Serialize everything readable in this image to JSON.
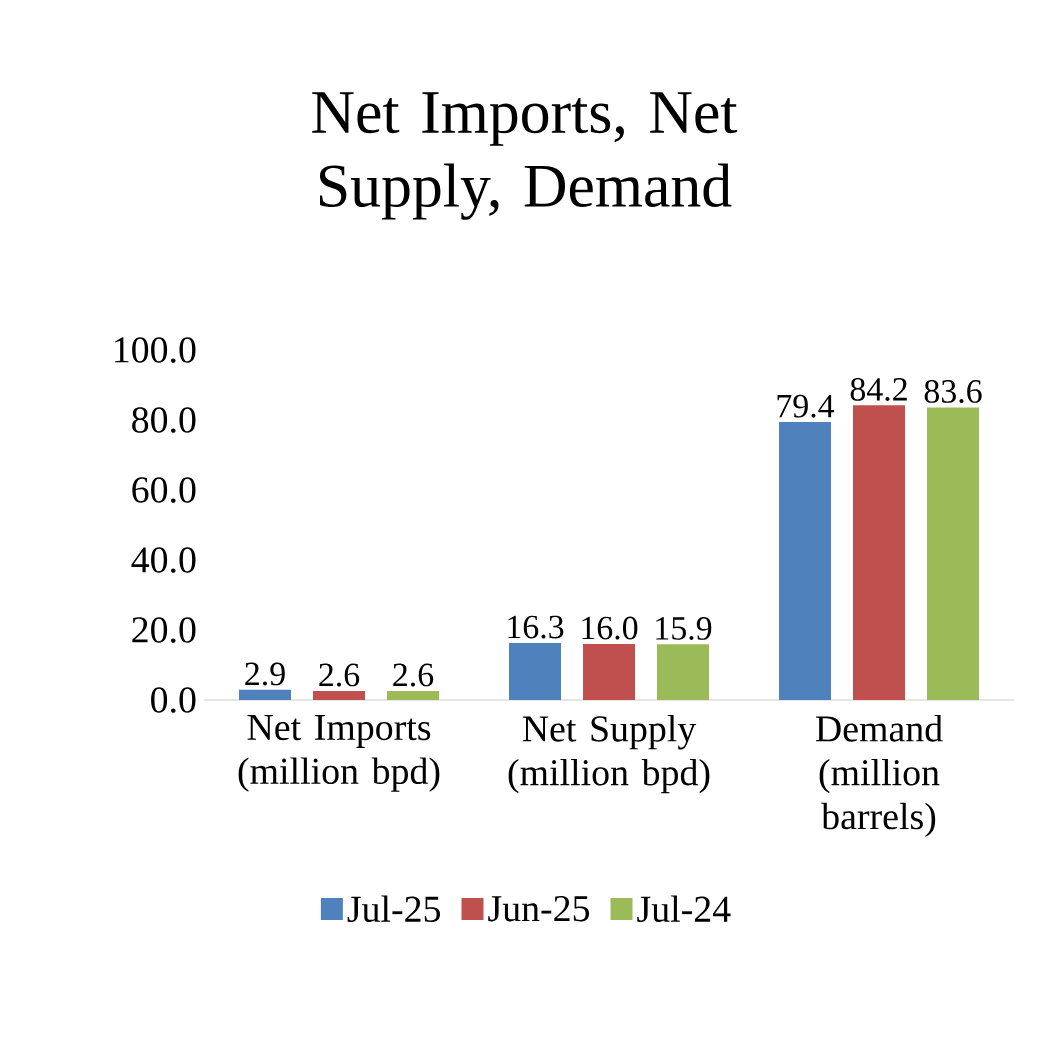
{
  "chart_data": {
    "type": "bar",
    "title": "Net Imports, Net Supply, Demand",
    "categories": [
      "Net Imports (million bpd)",
      "Net Supply (million bpd)",
      "Demand (million barrels)"
    ],
    "series": [
      {
        "name": "Jul-25",
        "color": "#4f81bd",
        "values": [
          2.9,
          16.3,
          79.4
        ],
        "value_labels": [
          "2.9",
          "16.3",
          "79.4"
        ]
      },
      {
        "name": "Jun-25",
        "color": "#c0504d",
        "values": [
          2.6,
          16.0,
          84.2
        ],
        "value_labels": [
          "2.6",
          "16.0",
          "84.2"
        ]
      },
      {
        "name": "Jul-24",
        "color": "#9bbb59",
        "values": [
          2.6,
          15.9,
          83.6
        ],
        "value_labels": [
          "2.6",
          "15.9",
          "83.6"
        ]
      }
    ],
    "ylim": [
      0,
      100
    ],
    "yticks": [
      {
        "value": 0,
        "label": "0.0"
      },
      {
        "value": 20,
        "label": "20.0"
      },
      {
        "value": 40,
        "label": "40.0"
      },
      {
        "value": 60,
        "label": "60.0"
      },
      {
        "value": 80,
        "label": "80.0"
      },
      {
        "value": 100,
        "label": "100.0"
      }
    ],
    "legend": "bottom"
  }
}
